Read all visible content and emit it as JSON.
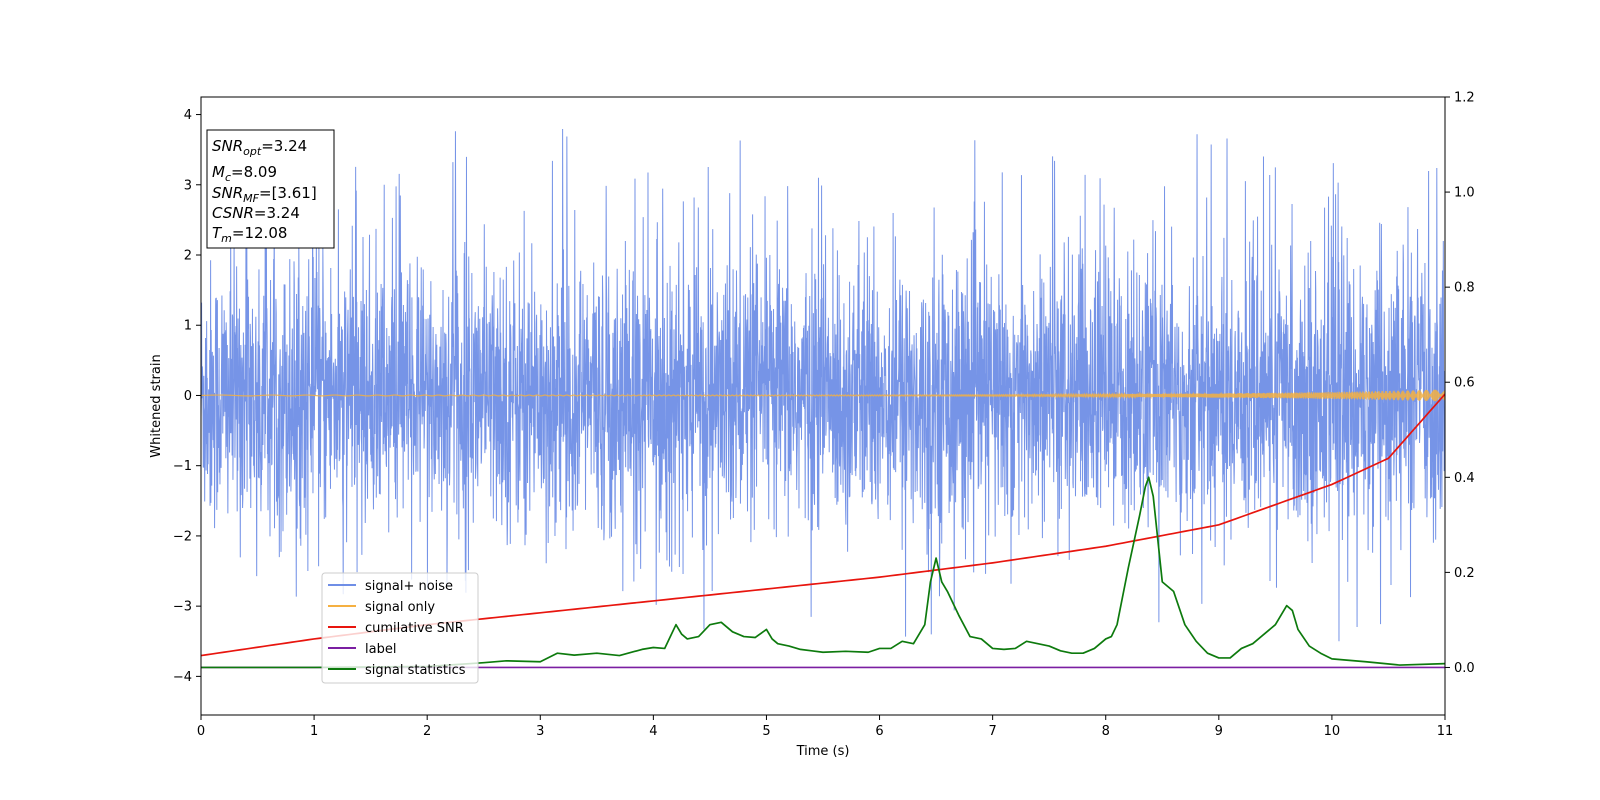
{
  "chart_data": {
    "type": "line",
    "xlabel": "Time (s)",
    "ylabel": "Whitened strain",
    "xlim": [
      0,
      11
    ],
    "ylim_left": [
      -4.55,
      4.25
    ],
    "ylim_right": [
      -0.1,
      1.2
    ],
    "x_ticks": [
      0,
      1,
      2,
      3,
      4,
      5,
      6,
      7,
      8,
      9,
      10,
      11
    ],
    "y_left_ticks": [
      4,
      3,
      2,
      1,
      0,
      -1,
      -2,
      -3,
      -4
    ],
    "y_right_ticks": [
      1.2,
      1.0,
      0.8,
      0.6,
      0.4,
      0.2,
      0.0
    ],
    "y_left_tick_labels": [
      "4",
      "3",
      "2",
      "1",
      "0",
      "−1",
      "−2",
      "−3",
      "−4"
    ],
    "y_right_tick_labels": [
      "1.2",
      "1.0",
      "0.8",
      "0.6",
      "0.4",
      "0.2",
      "0.0"
    ],
    "info_box": {
      "snr_opt": {
        "symbol": "SNR",
        "subscript": "opt",
        "value": "=3.24"
      },
      "mc": {
        "symbol": "M",
        "subscript": "c",
        "value": "=8.09"
      },
      "snr_mf": {
        "symbol": "SNR",
        "subscript": "MF",
        "value": "=[3.61]"
      },
      "csnr": {
        "symbol": "CSNR",
        "value": "=3.24"
      },
      "tm": {
        "symbol": "T",
        "subscript": "m",
        "value": "=12.08"
      }
    },
    "legend_position": "lower-left",
    "series": [
      {
        "name": "signal+ noise",
        "axis": "left",
        "color": "#6f8ee6",
        "style": "noise",
        "amplitude_typical": 1.6,
        "peak_max": 3.88,
        "peak_min": -3.5
      },
      {
        "name": "signal only",
        "axis": "left",
        "color": "#f5b041",
        "style": "chirp",
        "amplitude_end": 0.08
      },
      {
        "name": "cumilative SNR",
        "axis": "right",
        "color": "#e8150e",
        "x": [
          0,
          1,
          2,
          3,
          4,
          5,
          6,
          7,
          8,
          9,
          10,
          10.5,
          11
        ],
        "y": [
          0.025,
          0.06,
          0.09,
          0.115,
          0.14,
          0.165,
          0.19,
          0.22,
          0.255,
          0.3,
          0.385,
          0.44,
          0.575
        ]
      },
      {
        "name": "label",
        "axis": "right",
        "color": "#7b1fa2",
        "x": [
          0,
          11
        ],
        "y": [
          0.0,
          0.0
        ]
      },
      {
        "name": "signal statistics",
        "axis": "right",
        "color": "#0d7a0d",
        "x": [
          0,
          1,
          2,
          2.5,
          2.7,
          3,
          3.15,
          3.3,
          3.5,
          3.7,
          3.9,
          4.0,
          4.1,
          4.2,
          4.25,
          4.3,
          4.4,
          4.5,
          4.6,
          4.7,
          4.8,
          4.9,
          5.0,
          5.05,
          5.1,
          5.2,
          5.3,
          5.4,
          5.5,
          5.7,
          5.9,
          6.0,
          6.1,
          6.2,
          6.3,
          6.4,
          6.45,
          6.5,
          6.55,
          6.6,
          6.7,
          6.8,
          6.9,
          7.0,
          7.1,
          7.2,
          7.3,
          7.4,
          7.5,
          7.6,
          7.7,
          7.8,
          7.9,
          8.0,
          8.05,
          8.1,
          8.2,
          8.3,
          8.35,
          8.38,
          8.42,
          8.5,
          8.6,
          8.7,
          8.8,
          8.9,
          9.0,
          9.1,
          9.2,
          9.3,
          9.4,
          9.5,
          9.6,
          9.65,
          9.7,
          9.8,
          9.9,
          10.0,
          10.3,
          10.6,
          11.0
        ],
        "y": [
          0.0,
          0.0,
          0.002,
          0.01,
          0.014,
          0.012,
          0.03,
          0.026,
          0.03,
          0.025,
          0.038,
          0.042,
          0.04,
          0.09,
          0.07,
          0.06,
          0.065,
          0.09,
          0.095,
          0.075,
          0.065,
          0.063,
          0.08,
          0.06,
          0.05,
          0.045,
          0.038,
          0.035,
          0.032,
          0.034,
          0.032,
          0.04,
          0.04,
          0.055,
          0.05,
          0.09,
          0.18,
          0.23,
          0.18,
          0.16,
          0.11,
          0.065,
          0.06,
          0.04,
          0.038,
          0.04,
          0.055,
          0.05,
          0.045,
          0.035,
          0.03,
          0.03,
          0.04,
          0.06,
          0.065,
          0.09,
          0.21,
          0.32,
          0.38,
          0.4,
          0.36,
          0.18,
          0.16,
          0.09,
          0.055,
          0.03,
          0.02,
          0.02,
          0.04,
          0.05,
          0.07,
          0.09,
          0.13,
          0.12,
          0.08,
          0.045,
          0.03,
          0.018,
          0.012,
          0.005,
          0.008
        ]
      }
    ]
  }
}
